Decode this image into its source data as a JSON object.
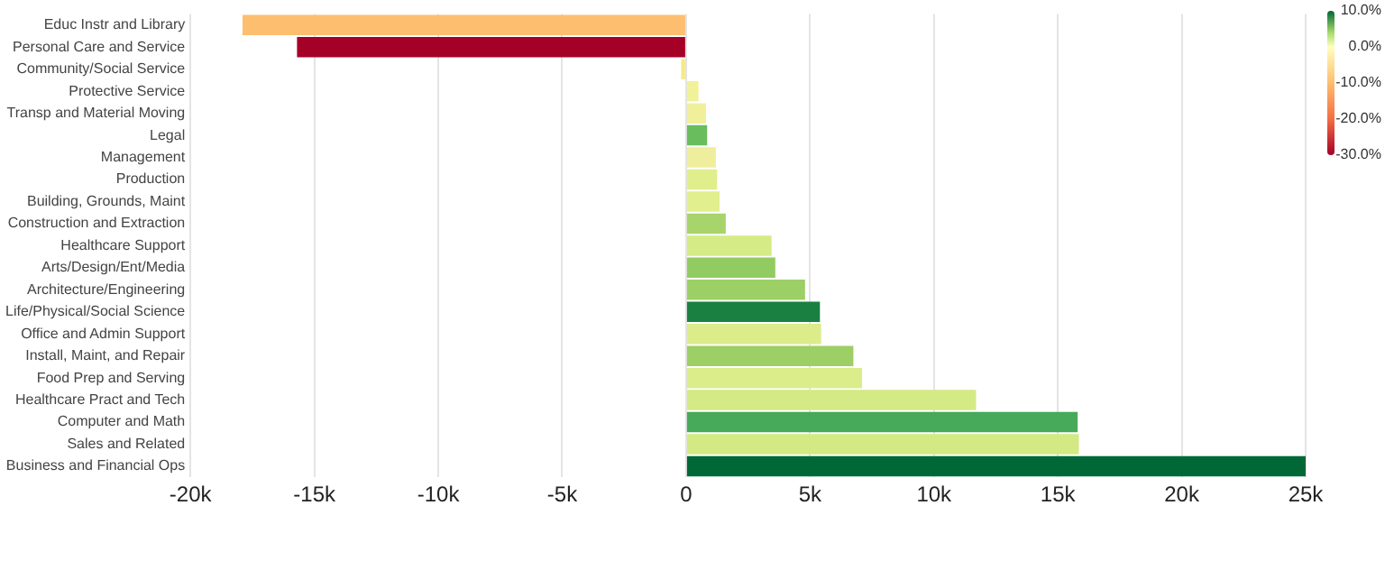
{
  "chart_data": {
    "type": "bar",
    "orientation": "horizontal",
    "categories": [
      "Educ Instr and Library",
      "Personal Care and Service",
      "Community/Social Service",
      "Protective Service",
      "Transp and Material Moving",
      "Legal",
      "Management",
      "Production",
      "Building, Grounds, Maint",
      "Construction and Extraction",
      "Healthcare Support",
      "Arts/Design/Ent/Media",
      "Architecture/Engineering",
      "Life/Physical/Social Science",
      "Office and Admin Support",
      "Install, Maint, and Repair",
      "Food Prep and Serving",
      "Healthcare Pract and Tech",
      "Computer and Math",
      "Sales and Related",
      "Business and Financial Ops"
    ],
    "values": [
      -17900,
      -15700,
      -200,
      500,
      800,
      850,
      1200,
      1250,
      1350,
      1600,
      3450,
      3600,
      4800,
      5400,
      5450,
      6750,
      7100,
      11700,
      15800,
      15850,
      25000
    ],
    "colors": [
      "#fdbe70",
      "#a50026",
      "#f4e98a",
      "#f1f19a",
      "#f0ef9a",
      "#6abd5c",
      "#eeee9c",
      "#e0ee8c",
      "#e2ef8e",
      "#a8d56b",
      "#d5eb85",
      "#93cb63",
      "#9ccf65",
      "#1a8041",
      "#dcec8a",
      "#9ccf65",
      "#dbed8a",
      "#d4ea85",
      "#47a95a",
      "#d3ea84",
      "#006837"
    ],
    "xlim": [
      -20000,
      25000
    ],
    "xticks": [
      {
        "value": -20000,
        "label": "-20k"
      },
      {
        "value": -15000,
        "label": "-15k"
      },
      {
        "value": -10000,
        "label": "-10k"
      },
      {
        "value": -5000,
        "label": "-5k"
      },
      0,
      {
        "value": 5000,
        "label": "5k"
      },
      {
        "value": 10000,
        "label": "10k"
      },
      {
        "value": 15000,
        "label": "15k"
      },
      {
        "value": 20000,
        "label": "20k"
      },
      {
        "value": 25000,
        "label": "25k"
      }
    ],
    "clim": [
      -30,
      10
    ],
    "cticks": [
      {
        "value": 10,
        "label": "10.0%"
      },
      {
        "value": 0,
        "label": "0.0%"
      },
      {
        "value": -10,
        "label": "-10.0%"
      },
      {
        "value": -20,
        "label": "-20.0%"
      },
      {
        "value": -30,
        "label": "-30.0%"
      }
    ],
    "grid": "x",
    "legend": false
  }
}
